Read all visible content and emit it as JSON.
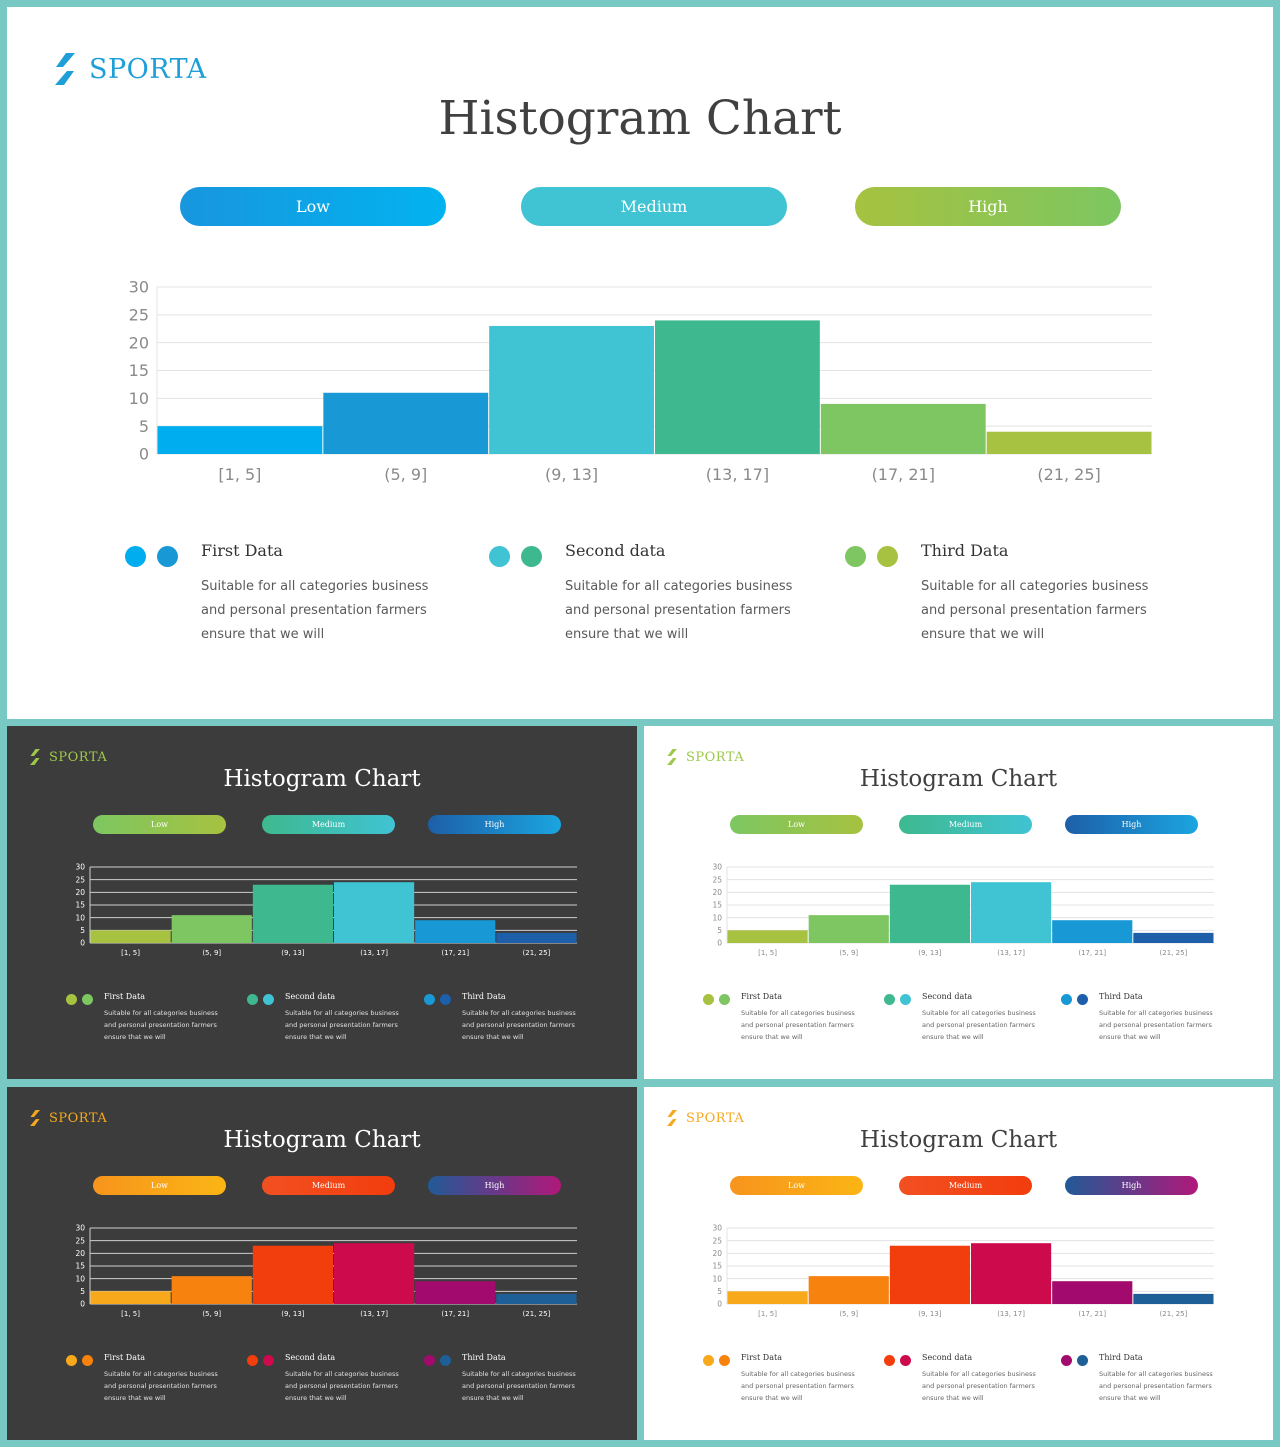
{
  "slides": [
    {
      "id": "slide-main",
      "theme": "light",
      "brand": "SPORTA",
      "brand_color": "#1e9fd8",
      "title": "Histogram Chart",
      "pills": [
        {
          "label": "Low",
          "colors": [
            "#1896de",
            "#02b3ef"
          ]
        },
        {
          "label": "Medium",
          "colors": [
            "#40c3d3",
            "#40c3d3"
          ]
        },
        {
          "label": "High",
          "colors": [
            "#a6c240",
            "#7dc661"
          ]
        }
      ],
      "bar_colors": [
        "#00aeef",
        "#1899d6",
        "#40c3d3",
        "#3eb98f",
        "#7dc661",
        "#a6c240"
      ],
      "legend": [
        {
          "title": "First Data",
          "desc": "Suitable for all categories business and personal presentation farmers ensure that we will",
          "dots": [
            "#00aeef",
            "#1899d6"
          ]
        },
        {
          "title": "Second data",
          "desc": "Suitable for all categories business and personal presentation farmers ensure that we will",
          "dots": [
            "#40c3d3",
            "#3eb98f"
          ]
        },
        {
          "title": "Third Data",
          "desc": "Suitable for all categories business and personal presentation farmers ensure that we will",
          "dots": [
            "#7dc661",
            "#a6c240"
          ]
        }
      ]
    },
    {
      "id": "slide-dark1",
      "theme": "dark",
      "brand": "SPORTA",
      "brand_color": "#9cc94a",
      "title": "Histogram Chart",
      "pills": [
        {
          "label": "Low",
          "colors": [
            "#7dc661",
            "#a6c240"
          ]
        },
        {
          "label": "Medium",
          "colors": [
            "#3eb98f",
            "#40c3d3"
          ]
        },
        {
          "label": "High",
          "colors": [
            "#1d5fa8",
            "#1ba5e0"
          ]
        }
      ],
      "bar_colors": [
        "#a6c240",
        "#7dc661",
        "#3eb98f",
        "#40c3d3",
        "#1899d6",
        "#1d5fa8"
      ],
      "legend": [
        {
          "title": "First Data",
          "desc": "Suitable for all categories business and personal presentation farmers ensure that we will",
          "dots": [
            "#a6c240",
            "#7dc661"
          ]
        },
        {
          "title": "Second data",
          "desc": "Suitable for all categories business and personal presentation farmers ensure that we will",
          "dots": [
            "#3eb98f",
            "#40c3d3"
          ]
        },
        {
          "title": "Third Data",
          "desc": "Suitable for all categories business and personal presentation farmers ensure that we will",
          "dots": [
            "#1899d6",
            "#1d5fa8"
          ]
        }
      ]
    },
    {
      "id": "slide-light1",
      "theme": "light",
      "brand": "SPORTA",
      "brand_color": "#9cc94a",
      "title": "Histogram Chart",
      "pills": [
        {
          "label": "Low",
          "colors": [
            "#7dc661",
            "#a6c240"
          ]
        },
        {
          "label": "Medium",
          "colors": [
            "#3eb98f",
            "#40c3d3"
          ]
        },
        {
          "label": "High",
          "colors": [
            "#1d5fa8",
            "#1ba5e0"
          ]
        }
      ],
      "bar_colors": [
        "#a6c240",
        "#7dc661",
        "#3eb98f",
        "#40c3d3",
        "#1899d6",
        "#1d5fa8"
      ],
      "legend": [
        {
          "title": "First Data",
          "desc": "Suitable for all categories business and personal presentation farmers ensure that we will",
          "dots": [
            "#a6c240",
            "#7dc661"
          ]
        },
        {
          "title": "Second data",
          "desc": "Suitable for all categories business and personal presentation farmers ensure that we will",
          "dots": [
            "#3eb98f",
            "#40c3d3"
          ]
        },
        {
          "title": "Third Data",
          "desc": "Suitable for all categories business and personal presentation farmers ensure that we will",
          "dots": [
            "#1899d6",
            "#1d5fa8"
          ]
        }
      ]
    },
    {
      "id": "slide-dark2",
      "theme": "dark",
      "brand": "SPORTA",
      "brand_color": "#f5a81c",
      "title": "Histogram Chart",
      "pills": [
        {
          "label": "Low",
          "colors": [
            "#f7941d",
            "#fbb514"
          ]
        },
        {
          "label": "Medium",
          "colors": [
            "#f25022",
            "#f23d0d"
          ]
        },
        {
          "label": "High",
          "colors": [
            "#215a96",
            "#b0187a"
          ]
        }
      ],
      "bar_colors": [
        "#f7a81b",
        "#f7820e",
        "#f23d0d",
        "#cc0a4c",
        "#a30a6d",
        "#1d5f96"
      ],
      "legend": [
        {
          "title": "First Data",
          "desc": "Suitable for all categories business and personal presentation farmers ensure that we will",
          "dots": [
            "#f7a81b",
            "#f7820e"
          ]
        },
        {
          "title": "Second data",
          "desc": "Suitable for all categories business and personal presentation farmers ensure that we will",
          "dots": [
            "#f23d0d",
            "#cc0a4c"
          ]
        },
        {
          "title": "Third Data",
          "desc": "Suitable for all categories business and personal presentation farmers ensure that we will",
          "dots": [
            "#a30a6d",
            "#1d5f96"
          ]
        }
      ]
    },
    {
      "id": "slide-light2",
      "theme": "light",
      "brand": "SPORTA",
      "brand_color": "#f5a81c",
      "title": "Histogram Chart",
      "pills": [
        {
          "label": "Low",
          "colors": [
            "#f7941d",
            "#fbb514"
          ]
        },
        {
          "label": "Medium",
          "colors": [
            "#f25022",
            "#f23d0d"
          ]
        },
        {
          "label": "High",
          "colors": [
            "#215a96",
            "#b0187a"
          ]
        }
      ],
      "bar_colors": [
        "#f7a81b",
        "#f7820e",
        "#f23d0d",
        "#cc0a4c",
        "#a30a6d",
        "#1d5f96"
      ],
      "legend": [
        {
          "title": "First Data",
          "desc": "Suitable for all categories business and personal presentation farmers ensure that we will",
          "dots": [
            "#f7a81b",
            "#f7820e"
          ]
        },
        {
          "title": "Second data",
          "desc": "Suitable for all categories business and personal presentation farmers ensure that we will",
          "dots": [
            "#f23d0d",
            "#cc0a4c"
          ]
        },
        {
          "title": "Third Data",
          "desc": "Suitable for all categories business and personal presentation farmers ensure that we will",
          "dots": [
            "#a30a6d",
            "#1d5f96"
          ]
        }
      ]
    }
  ],
  "chart_data": [
    {
      "type": "bar",
      "title": "Histogram Chart",
      "categories": [
        "[1, 5]",
        "(5, 9]",
        "(9, 13]",
        "(13, 17]",
        "(17, 21]",
        "(21, 25]"
      ],
      "values": [
        5,
        11,
        23,
        24,
        9,
        4
      ],
      "yticks": [
        0,
        5,
        10,
        15,
        20,
        25,
        30
      ],
      "ylim": [
        0,
        30
      ],
      "grid": true
    },
    {
      "type": "bar",
      "title": "Histogram Chart",
      "categories": [
        "[1, 5]",
        "(5, 9]",
        "(9, 13]",
        "(13, 17]",
        "(17, 21]",
        "(21, 25]"
      ],
      "values": [
        5,
        11,
        23,
        24,
        9,
        4
      ],
      "yticks": [
        0,
        5,
        10,
        15,
        20,
        25,
        30
      ],
      "ylim": [
        0,
        30
      ],
      "grid": true
    },
    {
      "type": "bar",
      "title": "Histogram Chart",
      "categories": [
        "[1, 5]",
        "(5, 9]",
        "(9, 13]",
        "(13, 17]",
        "(17, 21]",
        "(21, 25]"
      ],
      "values": [
        5,
        11,
        23,
        24,
        9,
        4
      ],
      "yticks": [
        0,
        5,
        10,
        15,
        20,
        25,
        30
      ],
      "ylim": [
        0,
        30
      ],
      "grid": true
    },
    {
      "type": "bar",
      "title": "Histogram Chart",
      "categories": [
        "[1, 5]",
        "(5, 9]",
        "(9, 13]",
        "(13, 17]",
        "(17, 21]",
        "(21, 25]"
      ],
      "values": [
        5,
        11,
        23,
        24,
        9,
        4
      ],
      "yticks": [
        0,
        5,
        10,
        15,
        20,
        25,
        30
      ],
      "ylim": [
        0,
        30
      ],
      "grid": true
    },
    {
      "type": "bar",
      "title": "Histogram Chart",
      "categories": [
        "[1, 5]",
        "(5, 9]",
        "(9, 13]",
        "(13, 17]",
        "(17, 21]",
        "(21, 25]"
      ],
      "values": [
        5,
        11,
        23,
        24,
        9,
        4
      ],
      "yticks": [
        0,
        5,
        10,
        15,
        20,
        25,
        30
      ],
      "ylim": [
        0,
        30
      ],
      "grid": true
    }
  ]
}
